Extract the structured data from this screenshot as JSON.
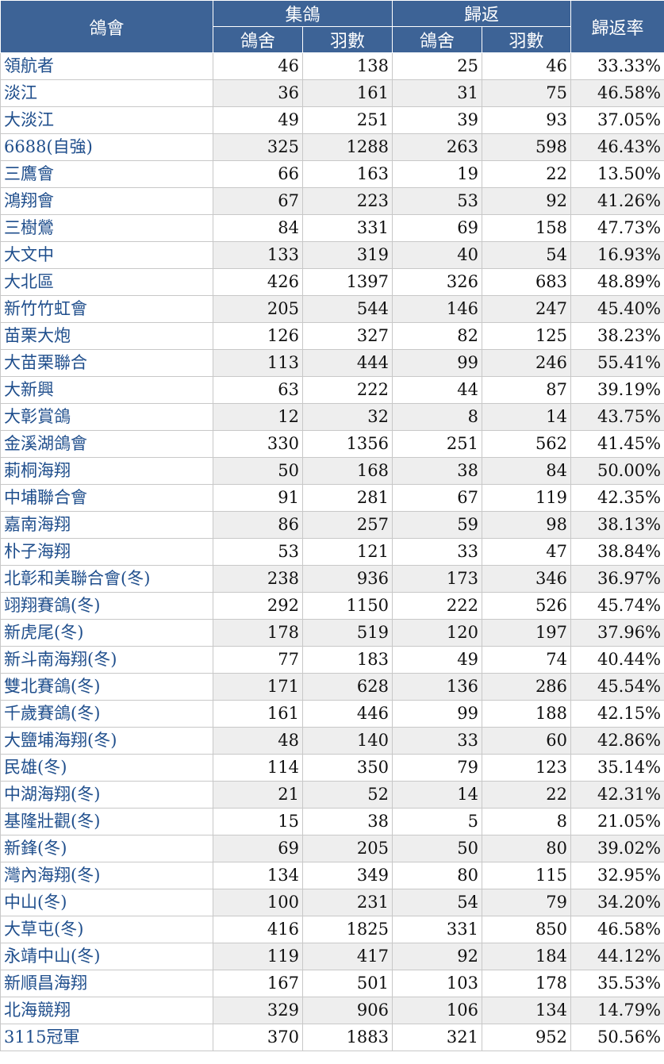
{
  "headers": {
    "club": "鴿會",
    "collect": "集鴿",
    "return": "歸返",
    "rate": "歸返率",
    "lofts": "鴿舍",
    "birds": "羽數"
  },
  "rows": [
    {
      "name": "領航者",
      "c_lofts": "46",
      "c_birds": "138",
      "r_lofts": "25",
      "r_birds": "46",
      "rate": "33.33%"
    },
    {
      "name": "淡江",
      "c_lofts": "36",
      "c_birds": "161",
      "r_lofts": "31",
      "r_birds": "75",
      "rate": "46.58%"
    },
    {
      "name": "大淡江",
      "c_lofts": "49",
      "c_birds": "251",
      "r_lofts": "39",
      "r_birds": "93",
      "rate": "37.05%"
    },
    {
      "name": "6688(自強)",
      "c_lofts": "325",
      "c_birds": "1288",
      "r_lofts": "263",
      "r_birds": "598",
      "rate": "46.43%"
    },
    {
      "name": "三鷹會",
      "c_lofts": "66",
      "c_birds": "163",
      "r_lofts": "19",
      "r_birds": "22",
      "rate": "13.50%"
    },
    {
      "name": "鴻翔會",
      "c_lofts": "67",
      "c_birds": "223",
      "r_lofts": "53",
      "r_birds": "92",
      "rate": "41.26%"
    },
    {
      "name": "三樹鶯",
      "c_lofts": "84",
      "c_birds": "331",
      "r_lofts": "69",
      "r_birds": "158",
      "rate": "47.73%"
    },
    {
      "name": "大文中",
      "c_lofts": "133",
      "c_birds": "319",
      "r_lofts": "40",
      "r_birds": "54",
      "rate": "16.93%"
    },
    {
      "name": "大北區",
      "c_lofts": "426",
      "c_birds": "1397",
      "r_lofts": "326",
      "r_birds": "683",
      "rate": "48.89%"
    },
    {
      "name": "新竹竹虹會",
      "c_lofts": "205",
      "c_birds": "544",
      "r_lofts": "146",
      "r_birds": "247",
      "rate": "45.40%"
    },
    {
      "name": "苗栗大炮",
      "c_lofts": "126",
      "c_birds": "327",
      "r_lofts": "82",
      "r_birds": "125",
      "rate": "38.23%"
    },
    {
      "name": "大苗栗聯合",
      "c_lofts": "113",
      "c_birds": "444",
      "r_lofts": "99",
      "r_birds": "246",
      "rate": "55.41%"
    },
    {
      "name": "大新興",
      "c_lofts": "63",
      "c_birds": "222",
      "r_lofts": "44",
      "r_birds": "87",
      "rate": "39.19%"
    },
    {
      "name": "大彰賞鴿",
      "c_lofts": "12",
      "c_birds": "32",
      "r_lofts": "8",
      "r_birds": "14",
      "rate": "43.75%"
    },
    {
      "name": "金溪湖鴿會",
      "c_lofts": "330",
      "c_birds": "1356",
      "r_lofts": "251",
      "r_birds": "562",
      "rate": "41.45%"
    },
    {
      "name": "莿桐海翔",
      "c_lofts": "50",
      "c_birds": "168",
      "r_lofts": "38",
      "r_birds": "84",
      "rate": "50.00%"
    },
    {
      "name": "中埔聯合會",
      "c_lofts": "91",
      "c_birds": "281",
      "r_lofts": "67",
      "r_birds": "119",
      "rate": "42.35%"
    },
    {
      "name": "嘉南海翔",
      "c_lofts": "86",
      "c_birds": "257",
      "r_lofts": "59",
      "r_birds": "98",
      "rate": "38.13%"
    },
    {
      "name": "朴子海翔",
      "c_lofts": "53",
      "c_birds": "121",
      "r_lofts": "33",
      "r_birds": "47",
      "rate": "38.84%"
    },
    {
      "name": "北彰和美聯合會(冬)",
      "c_lofts": "238",
      "c_birds": "936",
      "r_lofts": "173",
      "r_birds": "346",
      "rate": "36.97%"
    },
    {
      "name": "翊翔賽鴿(冬)",
      "c_lofts": "292",
      "c_birds": "1150",
      "r_lofts": "222",
      "r_birds": "526",
      "rate": "45.74%"
    },
    {
      "name": "新虎尾(冬)",
      "c_lofts": "178",
      "c_birds": "519",
      "r_lofts": "120",
      "r_birds": "197",
      "rate": "37.96%"
    },
    {
      "name": "新斗南海翔(冬)",
      "c_lofts": "77",
      "c_birds": "183",
      "r_lofts": "49",
      "r_birds": "74",
      "rate": "40.44%"
    },
    {
      "name": "雙北賽鴿(冬)",
      "c_lofts": "171",
      "c_birds": "628",
      "r_lofts": "136",
      "r_birds": "286",
      "rate": "45.54%"
    },
    {
      "name": "千歲賽鴿(冬)",
      "c_lofts": "161",
      "c_birds": "446",
      "r_lofts": "99",
      "r_birds": "188",
      "rate": "42.15%"
    },
    {
      "name": "大鹽埔海翔(冬)",
      "c_lofts": "48",
      "c_birds": "140",
      "r_lofts": "33",
      "r_birds": "60",
      "rate": "42.86%"
    },
    {
      "name": "民雄(冬)",
      "c_lofts": "114",
      "c_birds": "350",
      "r_lofts": "79",
      "r_birds": "123",
      "rate": "35.14%"
    },
    {
      "name": "中湖海翔(冬)",
      "c_lofts": "21",
      "c_birds": "52",
      "r_lofts": "14",
      "r_birds": "22",
      "rate": "42.31%"
    },
    {
      "name": "基隆壯觀(冬)",
      "c_lofts": "15",
      "c_birds": "38",
      "r_lofts": "5",
      "r_birds": "8",
      "rate": "21.05%"
    },
    {
      "name": "新鋒(冬)",
      "c_lofts": "69",
      "c_birds": "205",
      "r_lofts": "50",
      "r_birds": "80",
      "rate": "39.02%"
    },
    {
      "name": "灣內海翔(冬)",
      "c_lofts": "134",
      "c_birds": "349",
      "r_lofts": "80",
      "r_birds": "115",
      "rate": "32.95%"
    },
    {
      "name": "中山(冬)",
      "c_lofts": "100",
      "c_birds": "231",
      "r_lofts": "54",
      "r_birds": "79",
      "rate": "34.20%"
    },
    {
      "name": "大草屯(冬)",
      "c_lofts": "416",
      "c_birds": "1825",
      "r_lofts": "331",
      "r_birds": "850",
      "rate": "46.58%"
    },
    {
      "name": "永靖中山(冬)",
      "c_lofts": "119",
      "c_birds": "417",
      "r_lofts": "92",
      "r_birds": "184",
      "rate": "44.12%"
    },
    {
      "name": "新順昌海翔",
      "c_lofts": "167",
      "c_birds": "501",
      "r_lofts": "103",
      "r_birds": "178",
      "rate": "35.53%"
    },
    {
      "name": "北海競翔",
      "c_lofts": "329",
      "c_birds": "906",
      "r_lofts": "106",
      "r_birds": "134",
      "rate": "14.79%"
    },
    {
      "name": "3115冠軍",
      "c_lofts": "370",
      "c_birds": "1883",
      "r_lofts": "321",
      "r_birds": "952",
      "rate": "50.56%"
    }
  ]
}
